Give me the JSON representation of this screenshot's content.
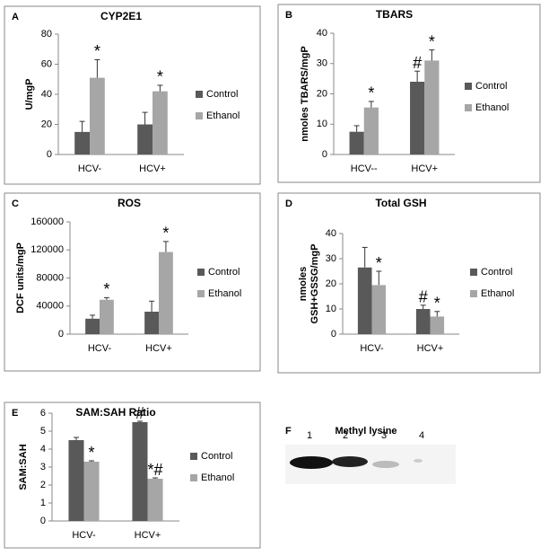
{
  "chart_data": [
    {
      "type": "bar",
      "panel": "A",
      "title": "CYP2E1",
      "ylabel": "U/mgP",
      "categories": [
        "HCV-",
        "HCV+"
      ],
      "series": [
        {
          "name": "Control",
          "color": "#595959",
          "values": [
            15,
            20
          ],
          "errors": [
            7,
            8
          ],
          "markers": [
            null,
            null
          ]
        },
        {
          "name": "Ethanol",
          "color": "#a6a6a6",
          "values": [
            51,
            42
          ],
          "errors": [
            12,
            4
          ],
          "markers": [
            "*",
            "*"
          ]
        }
      ],
      "ylim": [
        0,
        80
      ],
      "yticks": [
        0,
        20,
        40,
        60,
        80
      ]
    },
    {
      "type": "bar",
      "panel": "B",
      "title": "TBARS",
      "ylabel": "nmoles TBARS/mgP",
      "categories": [
        "HCV--",
        "HCV+"
      ],
      "series": [
        {
          "name": "Control",
          "color": "#595959",
          "values": [
            7.5,
            24
          ],
          "errors": [
            2,
            3.5
          ],
          "markers": [
            null,
            "#"
          ]
        },
        {
          "name": "Ethanol",
          "color": "#a6a6a6",
          "values": [
            15.5,
            31
          ],
          "errors": [
            2,
            3.5
          ],
          "markers": [
            "*",
            "*"
          ]
        }
      ],
      "ylim": [
        0,
        40
      ],
      "yticks": [
        0,
        10,
        20,
        30,
        40
      ]
    },
    {
      "type": "bar",
      "panel": "C",
      "title": "ROS",
      "ylabel": "DCF units/mgP",
      "categories": [
        "HCV-",
        "HCV+"
      ],
      "series": [
        {
          "name": "Control",
          "color": "#595959",
          "values": [
            22000,
            32000
          ],
          "errors": [
            5000,
            15000
          ],
          "markers": [
            null,
            null
          ]
        },
        {
          "name": "Ethanol",
          "color": "#a6a6a6",
          "values": [
            49000,
            117000
          ],
          "errors": [
            3000,
            15000
          ],
          "markers": [
            "*",
            "*"
          ]
        }
      ],
      "ylim": [
        0,
        160000
      ],
      "yticks": [
        0,
        40000,
        80000,
        120000,
        160000
      ]
    },
    {
      "type": "bar",
      "panel": "D",
      "title": "Total GSH",
      "ylabel": [
        "nmoles",
        "GSH+GSSG/mgP"
      ],
      "categories": [
        "HCV-",
        "HCV+"
      ],
      "series": [
        {
          "name": "Control",
          "color": "#595959",
          "values": [
            26.5,
            10
          ],
          "errors": [
            8,
            1.5
          ],
          "markers": [
            null,
            "#"
          ]
        },
        {
          "name": "Ethanol",
          "color": "#a6a6a6",
          "values": [
            19.5,
            7
          ],
          "errors": [
            5.5,
            2
          ],
          "markers": [
            "*",
            "*"
          ]
        }
      ],
      "ylim": [
        0,
        40
      ],
      "yticks": [
        0,
        10,
        20,
        30,
        40
      ]
    },
    {
      "type": "bar",
      "panel": "E",
      "title": "SAM:SAH Ratio",
      "ylabel": "SAM:SAH",
      "categories": [
        "HCV-",
        "HCV+"
      ],
      "series": [
        {
          "name": "Control",
          "color": "#595959",
          "values": [
            4.5,
            5.5
          ],
          "errors": [
            0.15,
            0.05
          ],
          "markers": [
            null,
            "#"
          ]
        },
        {
          "name": "Ethanol",
          "color": "#a6a6a6",
          "values": [
            3.3,
            2.35
          ],
          "errors": [
            0.05,
            0.05
          ],
          "markers": [
            "*",
            "*#"
          ]
        }
      ],
      "ylim": [
        0,
        6
      ],
      "yticks": [
        0,
        1,
        2,
        3,
        4,
        5,
        6
      ]
    }
  ],
  "blot": {
    "panel": "F",
    "title": "Methyl  lysine",
    "lanes": [
      "1",
      "2",
      "3",
      "4"
    ]
  }
}
